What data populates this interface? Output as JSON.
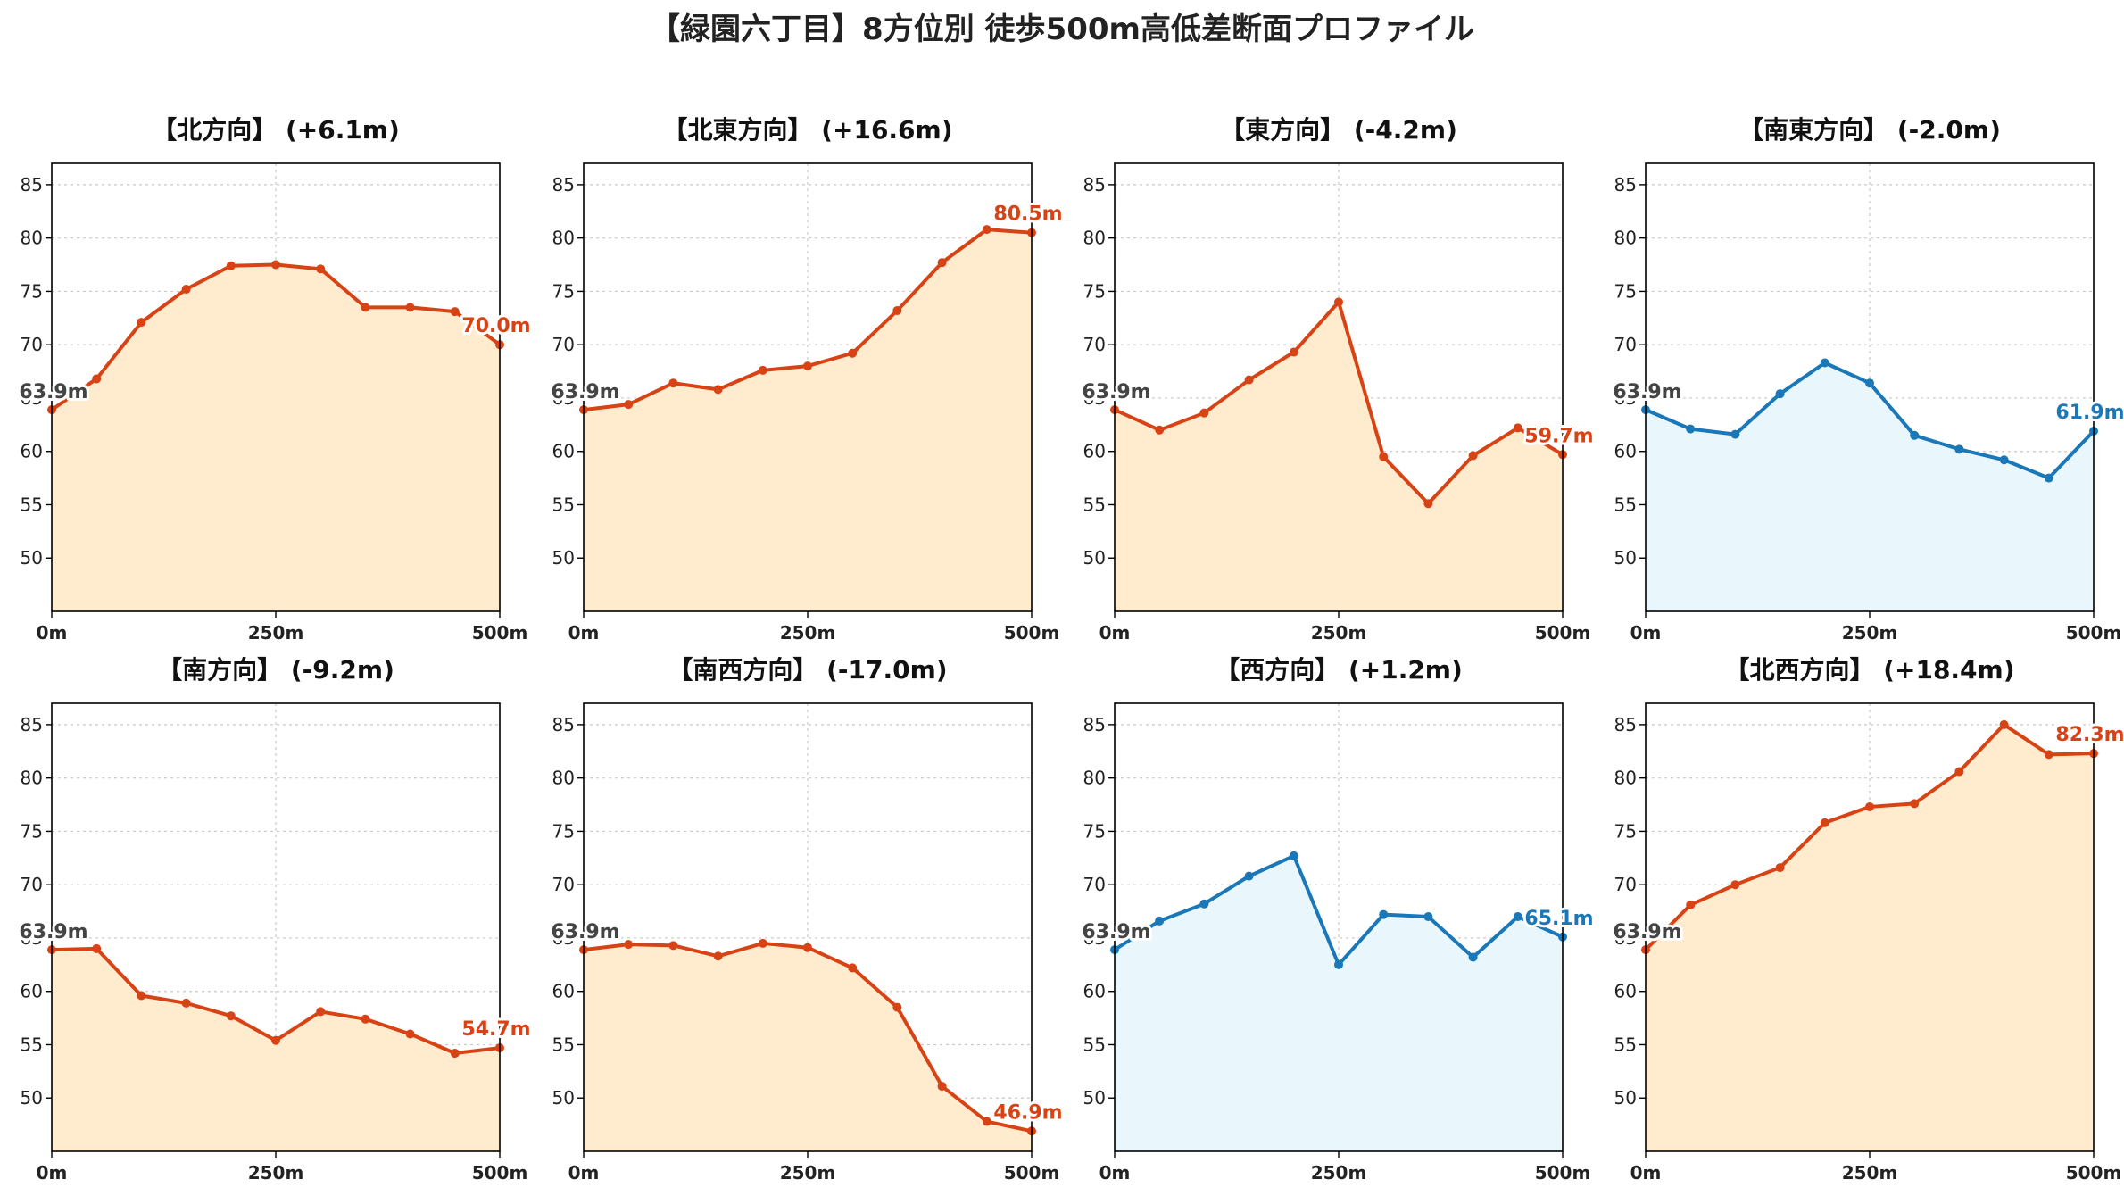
{
  "figure": {
    "title": "【緑園六丁目】8方位別 徒歩500m高低差断面プロファイル"
  },
  "colors": {
    "up_line": "#d84315",
    "up_fill": "#ffeccf",
    "down_line": "#1a78b8",
    "down_fill": "#e9f6fc",
    "start_label": "#444444"
  },
  "chart_data": [
    {
      "type": "area",
      "title": "【北方向】 (+6.1m)",
      "color": "up",
      "x": [
        0,
        50,
        100,
        150,
        200,
        250,
        300,
        350,
        400,
        450,
        500
      ],
      "values": [
        63.9,
        66.8,
        72.1,
        75.2,
        77.4,
        77.5,
        77.1,
        73.5,
        73.5,
        73.1,
        70.0
      ],
      "start_label": "63.9m",
      "end_label": "70.0m",
      "xticks": [
        "0m",
        "250m",
        "500m"
      ],
      "yticks": [
        50,
        55,
        60,
        65,
        70,
        75,
        80,
        85
      ],
      "ylim": [
        45,
        87
      ],
      "xlim": [
        0,
        500
      ],
      "grid": true
    },
    {
      "type": "area",
      "title": "【北東方向】 (+16.6m)",
      "color": "up",
      "x": [
        0,
        50,
        100,
        150,
        200,
        250,
        300,
        350,
        400,
        450,
        500
      ],
      "values": [
        63.9,
        64.4,
        66.4,
        65.8,
        67.6,
        68.0,
        69.2,
        73.2,
        77.7,
        80.8,
        80.5
      ],
      "start_label": "63.9m",
      "end_label": "80.5m",
      "xticks": [
        "0m",
        "250m",
        "500m"
      ],
      "yticks": [
        50,
        55,
        60,
        65,
        70,
        75,
        80,
        85
      ],
      "ylim": [
        45,
        87
      ],
      "xlim": [
        0,
        500
      ],
      "grid": true
    },
    {
      "type": "area",
      "title": "【東方向】 (-4.2m)",
      "color": "up",
      "x": [
        0,
        50,
        100,
        150,
        200,
        250,
        300,
        350,
        400,
        450,
        500
      ],
      "values": [
        63.9,
        62.0,
        63.6,
        66.7,
        69.3,
        74.0,
        59.5,
        55.1,
        59.6,
        62.2,
        59.7
      ],
      "start_label": "63.9m",
      "end_label": "59.7m",
      "xticks": [
        "0m",
        "250m",
        "500m"
      ],
      "yticks": [
        50,
        55,
        60,
        65,
        70,
        75,
        80,
        85
      ],
      "ylim": [
        45,
        87
      ],
      "xlim": [
        0,
        500
      ],
      "grid": true
    },
    {
      "type": "area",
      "title": "【南東方向】 (-2.0m)",
      "color": "down",
      "x": [
        0,
        50,
        100,
        150,
        200,
        250,
        300,
        350,
        400,
        450,
        500
      ],
      "values": [
        63.9,
        62.1,
        61.6,
        65.4,
        68.3,
        66.4,
        61.5,
        60.2,
        59.2,
        57.5,
        61.9
      ],
      "start_label": "63.9m",
      "end_label": "61.9m",
      "xticks": [
        "0m",
        "250m",
        "500m"
      ],
      "yticks": [
        50,
        55,
        60,
        65,
        70,
        75,
        80,
        85
      ],
      "ylim": [
        45,
        87
      ],
      "xlim": [
        0,
        500
      ],
      "grid": true
    },
    {
      "type": "area",
      "title": "【南方向】 (-9.2m)",
      "color": "up",
      "x": [
        0,
        50,
        100,
        150,
        200,
        250,
        300,
        350,
        400,
        450,
        500
      ],
      "values": [
        63.9,
        64.0,
        59.6,
        58.9,
        57.7,
        55.4,
        58.1,
        57.4,
        56.0,
        54.2,
        54.7
      ],
      "start_label": "63.9m",
      "end_label": "54.7m",
      "xticks": [
        "0m",
        "250m",
        "500m"
      ],
      "yticks": [
        50,
        55,
        60,
        65,
        70,
        75,
        80,
        85
      ],
      "ylim": [
        45,
        87
      ],
      "xlim": [
        0,
        500
      ],
      "grid": true
    },
    {
      "type": "area",
      "title": "【南西方向】 (-17.0m)",
      "color": "up",
      "x": [
        0,
        50,
        100,
        150,
        200,
        250,
        300,
        350,
        400,
        450,
        500
      ],
      "values": [
        63.9,
        64.4,
        64.3,
        63.3,
        64.5,
        64.1,
        62.2,
        58.5,
        51.1,
        47.8,
        46.9
      ],
      "start_label": "63.9m",
      "end_label": "46.9m",
      "xticks": [
        "0m",
        "250m",
        "500m"
      ],
      "yticks": [
        50,
        55,
        60,
        65,
        70,
        75,
        80,
        85
      ],
      "ylim": [
        45,
        87
      ],
      "xlim": [
        0,
        500
      ],
      "grid": true
    },
    {
      "type": "area",
      "title": "【西方向】 (+1.2m)",
      "color": "down",
      "x": [
        0,
        50,
        100,
        150,
        200,
        250,
        300,
        350,
        400,
        450,
        500
      ],
      "values": [
        63.9,
        66.6,
        68.2,
        70.8,
        72.7,
        62.5,
        67.2,
        67.0,
        63.2,
        67.0,
        65.1
      ],
      "start_label": "63.9m",
      "end_label": "65.1m",
      "xticks": [
        "0m",
        "250m",
        "500m"
      ],
      "yticks": [
        50,
        55,
        60,
        65,
        70,
        75,
        80,
        85
      ],
      "ylim": [
        45,
        87
      ],
      "xlim": [
        0,
        500
      ],
      "grid": true
    },
    {
      "type": "area",
      "title": "【北西方向】 (+18.4m)",
      "color": "up",
      "x": [
        0,
        50,
        100,
        150,
        200,
        250,
        300,
        350,
        400,
        450,
        500
      ],
      "values": [
        63.9,
        68.1,
        70.0,
        71.6,
        75.8,
        77.3,
        77.6,
        80.6,
        85.0,
        82.2,
        82.3
      ],
      "start_label": "63.9m",
      "end_label": "82.3m",
      "xticks": [
        "0m",
        "250m",
        "500m"
      ],
      "yticks": [
        50,
        55,
        60,
        65,
        70,
        75,
        80,
        85
      ],
      "ylim": [
        45,
        87
      ],
      "xlim": [
        0,
        500
      ],
      "grid": true
    }
  ]
}
